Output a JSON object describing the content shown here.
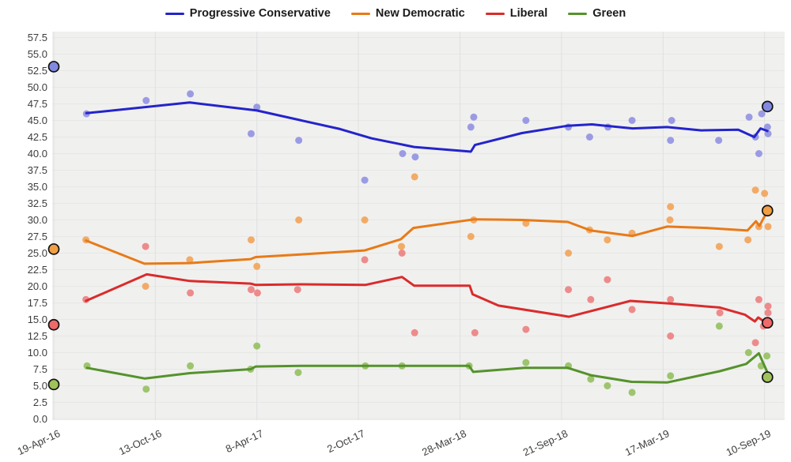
{
  "chart_data": {
    "type": "line",
    "title": "",
    "x_axis": {
      "tick_labels": [
        "19-Apr-16",
        "13-Oct-16",
        "8-Apr-17",
        "2-Oct-17",
        "28-Mar-18",
        "21-Sep-18",
        "17-Mar-19",
        "10-Sep-19"
      ],
      "tick_days": [
        0,
        177,
        354,
        531,
        708,
        885,
        1062,
        1239
      ],
      "domain_days": [
        0,
        1274
      ]
    },
    "y_axis": {
      "min": 0,
      "max": 57.5,
      "step": 2.5,
      "decimals": 1
    },
    "grid": "on",
    "legend_position": "top-center",
    "plot_bg": "#f0f0ef",
    "grid_h_color": "#e7e7e6",
    "grid_v_color": "#e0e0e0",
    "tick_text_color": "#3d3d3d",
    "series": [
      {
        "name": "Progressive Conservative",
        "color": "#2424cb",
        "point_color": "#9191e2",
        "marker_color": "#8289e0",
        "start_marker": {
          "day": 0,
          "value": 53.1
        },
        "end_marker": {
          "day": 1244,
          "value": 47.1
        },
        "trend": [
          [
            57,
            46.1
          ],
          [
            237,
            47.7
          ],
          [
            354,
            46.5
          ],
          [
            499,
            43.7
          ],
          [
            554,
            42.3
          ],
          [
            628,
            41.0
          ],
          [
            727,
            40.3
          ],
          [
            734,
            41.3
          ],
          [
            816,
            43.1
          ],
          [
            896,
            44.2
          ],
          [
            938,
            44.4
          ],
          [
            1009,
            43.8
          ],
          [
            1069,
            44.0
          ],
          [
            1129,
            43.5
          ],
          [
            1193,
            43.6
          ],
          [
            1221,
            42.5
          ],
          [
            1232,
            43.8
          ],
          [
            1244,
            43.4
          ]
        ],
        "polls": [
          [
            57,
            46
          ],
          [
            161,
            48
          ],
          [
            238,
            49
          ],
          [
            344,
            43
          ],
          [
            354,
            47
          ],
          [
            427,
            42
          ],
          [
            542,
            36
          ],
          [
            608,
            40
          ],
          [
            630,
            39.5
          ],
          [
            727,
            44
          ],
          [
            732,
            45.5
          ],
          [
            823,
            45
          ],
          [
            897,
            44
          ],
          [
            934,
            42.5
          ],
          [
            966,
            44
          ],
          [
            1008,
            45
          ],
          [
            1077,
            45
          ],
          [
            1075,
            42
          ],
          [
            1159,
            42
          ],
          [
            1212,
            45.5
          ],
          [
            1223,
            42.5
          ],
          [
            1229,
            40
          ],
          [
            1234,
            46
          ],
          [
            1244,
            44
          ],
          [
            1245,
            43
          ]
        ]
      },
      {
        "name": "New Democratic",
        "color": "#e87a17",
        "point_color": "#f2a358",
        "marker_color": "#f09f45",
        "start_marker": {
          "day": 0,
          "value": 25.6
        },
        "end_marker": {
          "day": 1244,
          "value": 31.4
        },
        "trend": [
          [
            56,
            26.9
          ],
          [
            158,
            23.4
          ],
          [
            237,
            23.5
          ],
          [
            343,
            24.1
          ],
          [
            352,
            24.4
          ],
          [
            430,
            24.8
          ],
          [
            542,
            25.4
          ],
          [
            605,
            27.1
          ],
          [
            627,
            28.8
          ],
          [
            733,
            30.1
          ],
          [
            816,
            30.0
          ],
          [
            896,
            29.7
          ],
          [
            936,
            28.4
          ],
          [
            1009,
            27.6
          ],
          [
            1069,
            29.0
          ],
          [
            1138,
            28.8
          ],
          [
            1209,
            28.4
          ],
          [
            1224,
            29.8
          ],
          [
            1230,
            29.1
          ],
          [
            1243,
            31.2
          ]
        ],
        "polls": [
          [
            56,
            27
          ],
          [
            160,
            20
          ],
          [
            237,
            24
          ],
          [
            344,
            27
          ],
          [
            354,
            23
          ],
          [
            427,
            30
          ],
          [
            542,
            30
          ],
          [
            606,
            26
          ],
          [
            629,
            36.5
          ],
          [
            727,
            27.5
          ],
          [
            732,
            30
          ],
          [
            823,
            29.5
          ],
          [
            897,
            25
          ],
          [
            934,
            28.5
          ],
          [
            965,
            27
          ],
          [
            1008,
            28
          ],
          [
            1075,
            32
          ],
          [
            1074,
            30
          ],
          [
            1160,
            26
          ],
          [
            1210,
            27
          ],
          [
            1223,
            34.5
          ],
          [
            1239,
            34
          ],
          [
            1229,
            29
          ],
          [
            1245,
            29
          ]
        ]
      },
      {
        "name": "Liberal",
        "color": "#da2b2b",
        "point_color": "#ec8080",
        "marker_color": "#ef6a6a",
        "start_marker": {
          "day": 0,
          "value": 14.2
        },
        "end_marker": {
          "day": 1244,
          "value": 14.5
        },
        "trend": [
          [
            56,
            17.8
          ],
          [
            162,
            21.8
          ],
          [
            237,
            20.8
          ],
          [
            343,
            20.4
          ],
          [
            352,
            20.2
          ],
          [
            430,
            20.3
          ],
          [
            543,
            20.2
          ],
          [
            607,
            21.4
          ],
          [
            628,
            20.1
          ],
          [
            725,
            20.1
          ],
          [
            730,
            18.8
          ],
          [
            775,
            17.1
          ],
          [
            885,
            15.6
          ],
          [
            898,
            15.4
          ],
          [
            1005,
            17.8
          ],
          [
            1073,
            17.4
          ],
          [
            1161,
            16.8
          ],
          [
            1205,
            15.7
          ],
          [
            1222,
            14.7
          ],
          [
            1228,
            15.3
          ],
          [
            1243,
            14.4
          ]
        ],
        "polls": [
          [
            56,
            18
          ],
          [
            160,
            26
          ],
          [
            238,
            19
          ],
          [
            344,
            19.5
          ],
          [
            355,
            19
          ],
          [
            425,
            19.5
          ],
          [
            542,
            24
          ],
          [
            607,
            25
          ],
          [
            629,
            13
          ],
          [
            734,
            13
          ],
          [
            823,
            13.5
          ],
          [
            897,
            19.5
          ],
          [
            936,
            18
          ],
          [
            965,
            21
          ],
          [
            1008,
            16.5
          ],
          [
            1075,
            18
          ],
          [
            1075,
            12.5
          ],
          [
            1161,
            16
          ],
          [
            1223,
            11.5
          ],
          [
            1229,
            18
          ],
          [
            1237,
            14
          ],
          [
            1245,
            17
          ],
          [
            1245,
            16
          ]
        ]
      },
      {
        "name": "Green",
        "color": "#55922c",
        "point_color": "#93c05e",
        "marker_color": "#9fc25a",
        "start_marker": {
          "day": 0,
          "value": 5.2
        },
        "end_marker": {
          "day": 1244,
          "value": 6.3
        },
        "trend": [
          [
            58,
            7.7
          ],
          [
            159,
            6.1
          ],
          [
            237,
            6.9
          ],
          [
            343,
            7.5
          ],
          [
            352,
            7.9
          ],
          [
            430,
            8.0
          ],
          [
            724,
            8.0
          ],
          [
            731,
            7.1
          ],
          [
            820,
            7.7
          ],
          [
            896,
            7.7
          ],
          [
            936,
            6.6
          ],
          [
            1007,
            5.6
          ],
          [
            1069,
            5.5
          ],
          [
            1161,
            7.2
          ],
          [
            1207,
            8.3
          ],
          [
            1229,
            9.9
          ],
          [
            1243,
            7.2
          ]
        ],
        "polls": [
          [
            58,
            8
          ],
          [
            161,
            4.5
          ],
          [
            238,
            8
          ],
          [
            343,
            7.5
          ],
          [
            354,
            11
          ],
          [
            426,
            7
          ],
          [
            543,
            8
          ],
          [
            607,
            8
          ],
          [
            724,
            8
          ],
          [
            823,
            8.5
          ],
          [
            897,
            8
          ],
          [
            936,
            6
          ],
          [
            965,
            5
          ],
          [
            1008,
            4
          ],
          [
            1075,
            6.5
          ],
          [
            1160,
            14
          ],
          [
            1211,
            10
          ],
          [
            1233,
            8
          ],
          [
            1243,
            9.5
          ]
        ]
      }
    ]
  }
}
